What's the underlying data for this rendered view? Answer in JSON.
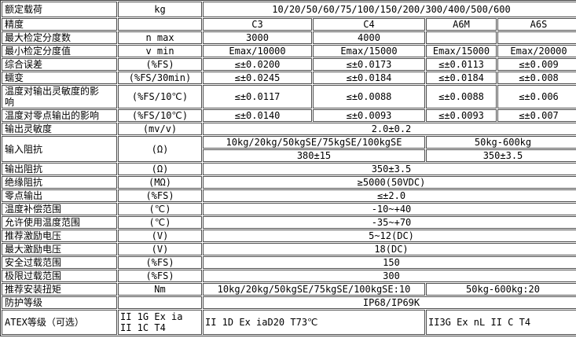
{
  "table": {
    "description": "load-cell-specification-table",
    "rows": [
      {
        "label": "额定载荷",
        "unit": "kg",
        "values": [
          "10/20/50/60/75/100/150/200/300/400/500/600"
        ]
      },
      {
        "label": "精度",
        "unit": "",
        "values": [
          "C3",
          "C4",
          "A6M",
          "A6S"
        ]
      },
      {
        "label": "最大检定分度数",
        "unit": "n max",
        "values": [
          "3000",
          "4000",
          "",
          ""
        ]
      },
      {
        "label": "最小检定分度值",
        "unit": "v min",
        "values": [
          "Emax/10000",
          "Emax/15000",
          "Emax/15000",
          "Emax/20000"
        ]
      },
      {
        "label": "综合误差",
        "unit": "(%FS)",
        "values": [
          "≤±0.0200",
          "≤±0.0173",
          "≤±0.0113",
          "≤±0.009"
        ]
      },
      {
        "label": "蠕变",
        "unit": "(%FS/30min)",
        "values": [
          "≤±0.0245",
          "≤±0.0184",
          "≤±0.0184",
          "≤±0.008"
        ]
      },
      {
        "label": "温度对输出灵敏度的影响",
        "unit": "(%FS/10℃)",
        "values": [
          "≤±0.0117",
          "≤±0.0088",
          "≤±0.0088",
          "≤±0.006"
        ]
      },
      {
        "label": "温度对零点输出的影响",
        "unit": "(%FS/10℃)",
        "values": [
          "≤±0.0140",
          "≤±0.0093",
          "≤±0.0093",
          "≤±0.007"
        ]
      },
      {
        "label": "输出灵敏度",
        "unit": "(mv/v)",
        "values": [
          "2.0±0.2"
        ]
      },
      {
        "label": "输入阻抗",
        "unit": "(Ω)",
        "sub_rows": [
          [
            "10kg/20kg/50kgSE/75kgSE/100kgSE",
            "50kg-600kg"
          ],
          [
            "380±15",
            "350±3.5"
          ]
        ]
      },
      {
        "label": "输出阻抗",
        "unit": "(Ω)",
        "values": [
          "350±3.5"
        ]
      },
      {
        "label": "绝缘阻抗",
        "unit": "(MΩ)",
        "values": [
          "≥5000(50VDC)"
        ]
      },
      {
        "label": "零点输出",
        "unit": "(%FS)",
        "values": [
          "≤±2.0"
        ]
      },
      {
        "label": "温度补偿范围",
        "unit": "(℃)",
        "values": [
          "-10~+40"
        ]
      },
      {
        "label": "允许使用温度范围",
        "unit": "(℃)",
        "values": [
          "-35~+70"
        ]
      },
      {
        "label": "推荐激励电压",
        "unit": "(V)",
        "values": [
          "5~12(DC)"
        ]
      },
      {
        "label": "最大激励电压",
        "unit": "(V)",
        "values": [
          "18(DC)"
        ]
      },
      {
        "label": "安全过载范围",
        "unit": "(%FS)",
        "values": [
          "150"
        ]
      },
      {
        "label": "极限过载范围",
        "unit": "(%FS)",
        "values": [
          "300"
        ]
      },
      {
        "label": "推荐安装扭矩",
        "unit": "Nm",
        "values": [
          "10kg/20kg/50kgSE/75kgSE/100kgSE:10",
          "50kg-600kg:20"
        ]
      },
      {
        "label": "防护等级",
        "unit": "",
        "values": [
          "IP68/IP69K"
        ]
      },
      {
        "label": "ATEX等级（可选）",
        "unit": "II 1G Ex ia II 1C T4",
        "values": [
          "II 1D Ex iaD20 T73℃",
          "II3G Ex nL II C T4"
        ]
      }
    ]
  }
}
